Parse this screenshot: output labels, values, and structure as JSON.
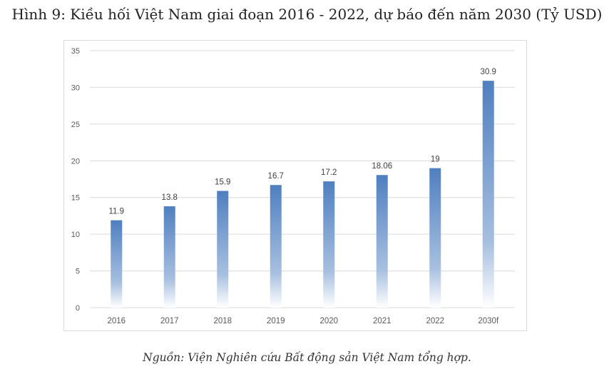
{
  "figure_title": "Hình 9: Kiều hối Việt Nam giai đoạn 2016 - 2022, dự báo đến năm 2030 (Tỷ USD)",
  "source_note": "Nguồn: Viện Nghiên cứu Bất động sản Việt Nam tổng hợp.",
  "chart_data": {
    "type": "bar",
    "title": "",
    "xlabel": "",
    "ylabel": "",
    "categories": [
      "2016",
      "2017",
      "2018",
      "2019",
      "2020",
      "2021",
      "2022",
      "2030f"
    ],
    "values": [
      11.9,
      13.8,
      15.9,
      16.7,
      17.2,
      18.06,
      19,
      30.9
    ],
    "data_labels": [
      "11.9",
      "13.8",
      "15.9",
      "16.7",
      "17.2",
      "18.06",
      "19",
      "30.9"
    ],
    "ylim": [
      0,
      35
    ],
    "yticks": [
      0,
      5,
      10,
      15,
      20,
      25,
      30,
      35
    ],
    "grid": true,
    "legend": "none",
    "bar_color_top": "#4f7fc0",
    "bar_color_bottom": "#ffffff"
  }
}
